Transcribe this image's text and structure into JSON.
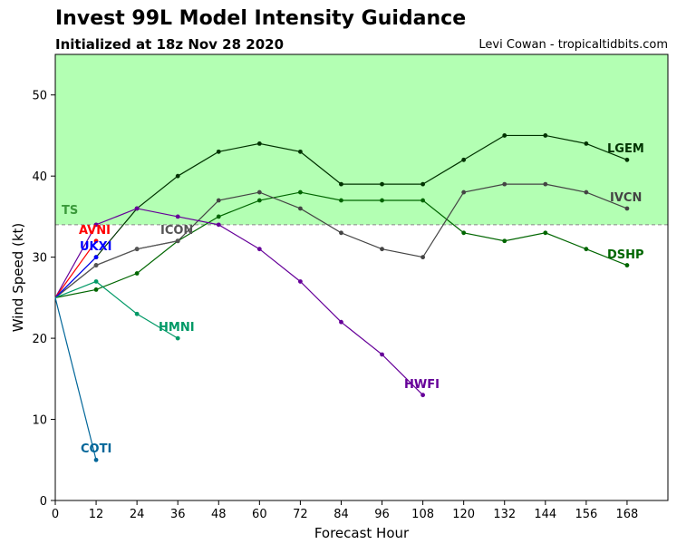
{
  "chart_data": {
    "type": "line",
    "title": "Invest 99L Model Intensity Guidance",
    "subtitle": "Initialized at 18z Nov 28 2020",
    "credit": "Levi Cowan - tropicaltidbits.com",
    "xlabel": "Forecast Hour",
    "ylabel": "Wind Speed (kt)",
    "xlim": [
      0,
      180
    ],
    "ylim": [
      0,
      55
    ],
    "xticks": [
      0,
      12,
      24,
      36,
      48,
      60,
      72,
      84,
      96,
      108,
      120,
      132,
      144,
      156,
      168
    ],
    "yticks": [
      0,
      10,
      20,
      30,
      40,
      50
    ],
    "ts_threshold": 34,
    "ts_label": "TS",
    "ts_fill_color": "#b3ffb3",
    "ts_label_color": "#3a9a3a",
    "series": [
      {
        "name": "LGEM",
        "color": "#003300",
        "x": [
          0,
          12,
          24,
          36,
          48,
          60,
          72,
          84,
          96,
          108,
          120,
          132,
          144,
          156,
          168
        ],
        "y": [
          25,
          30,
          36,
          40,
          43,
          44,
          43,
          39,
          39,
          39,
          42,
          45,
          45,
          44,
          42
        ]
      },
      {
        "name": "DSHP",
        "color": "#006600",
        "x": [
          0,
          12,
          24,
          36,
          48,
          60,
          72,
          84,
          96,
          108,
          120,
          132,
          144,
          156,
          168
        ],
        "y": [
          25,
          26,
          28,
          32,
          35,
          37,
          38,
          37,
          37,
          37,
          33,
          32,
          33,
          31,
          29
        ]
      },
      {
        "name": "IVCN",
        "color": "#444444",
        "x": [
          0,
          12,
          24,
          36,
          48,
          60,
          72,
          84,
          96,
          108,
          120,
          132,
          144,
          156,
          168
        ],
        "y": [
          25,
          29,
          31,
          32,
          37,
          38,
          36,
          33,
          31,
          30,
          38,
          39,
          39,
          38,
          36
        ]
      },
      {
        "name": "ICON",
        "color": "#555555",
        "x": [
          0,
          12,
          24,
          36
        ],
        "y": [
          25,
          29,
          31,
          32
        ]
      },
      {
        "name": "HWFI",
        "color": "#660099",
        "x": [
          0,
          12,
          24,
          36,
          48,
          60,
          72,
          84,
          96,
          108
        ],
        "y": [
          25,
          34,
          36,
          35,
          34,
          31,
          27,
          22,
          18,
          13
        ]
      },
      {
        "name": "AVNI",
        "color": "#ff0000",
        "x": [
          0,
          12
        ],
        "y": [
          25,
          32
        ]
      },
      {
        "name": "UKXI",
        "color": "#0000ff",
        "x": [
          0,
          12
        ],
        "y": [
          25,
          30
        ]
      },
      {
        "name": "HMNI",
        "color": "#009966",
        "x": [
          0,
          12,
          24,
          36
        ],
        "y": [
          25,
          27,
          23,
          20
        ]
      },
      {
        "name": "COTI",
        "color": "#006699",
        "x": [
          0,
          12
        ],
        "y": [
          25,
          5
        ]
      }
    ]
  }
}
